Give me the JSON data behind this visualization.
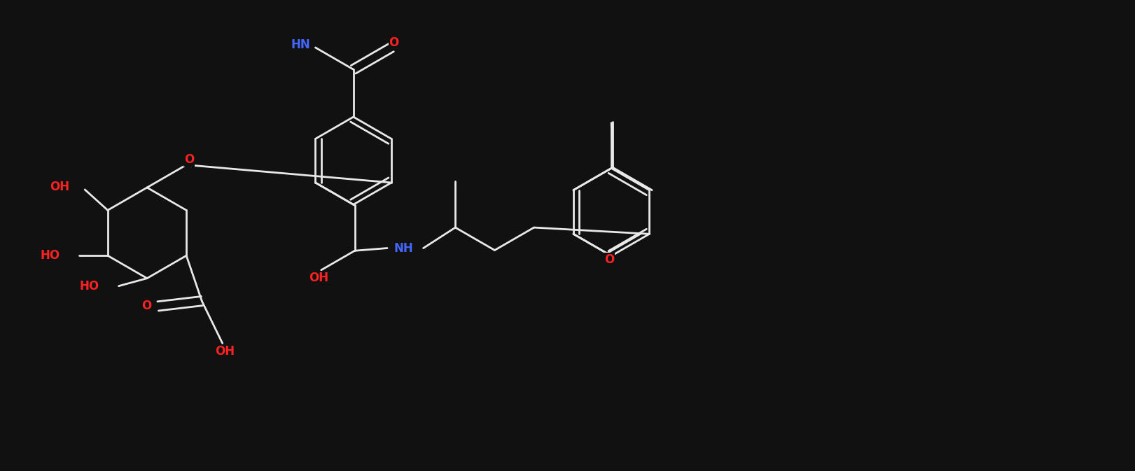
{
  "bg_color": "#111111",
  "bond_color": "#e8e8e8",
  "O_color": "#ff2222",
  "N_color": "#4466ff",
  "bond_width": 2.0,
  "font_size": 12,
  "fig_width": 16.21,
  "fig_height": 6.73,
  "xlim": [
    0,
    22
  ],
  "ylim": [
    0,
    9
  ]
}
